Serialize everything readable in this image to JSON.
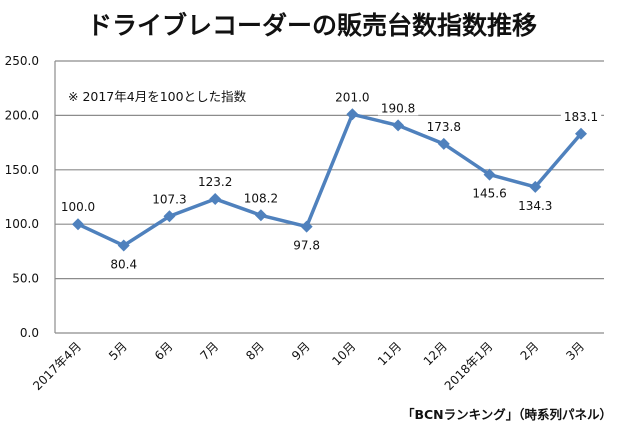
{
  "chart_data": {
    "type": "line",
    "title": "ドライブレコーダーの販売台数指数推移",
    "note": "※ 2017年4月を100とした指数",
    "source": "「BCNランキング」（時系列パネル）",
    "xlabel": "",
    "ylabel": "",
    "ylim": [
      0,
      250
    ],
    "yticks": [
      "0.0",
      "50.0",
      "100.0",
      "150.0",
      "200.0",
      "250.0"
    ],
    "ytick_values": [
      0,
      50,
      100,
      150,
      200,
      250
    ],
    "grid": true,
    "categories": [
      "2017年4月",
      "5月",
      "6月",
      "7月",
      "8月",
      "9月",
      "10月",
      "11月",
      "12月",
      "2018年1月",
      "2月",
      "3月"
    ],
    "series": [
      {
        "name": "販売台数指数",
        "values": [
          100.0,
          80.4,
          107.3,
          123.2,
          108.2,
          97.8,
          201.0,
          190.8,
          173.8,
          145.6,
          134.3,
          183.1
        ],
        "labels": [
          "100.0",
          "80.4",
          "107.3",
          "123.2",
          "108.2",
          "97.8",
          "201.0",
          "190.8",
          "173.8",
          "145.6",
          "134.3",
          "183.1"
        ],
        "label_positions": [
          "above",
          "below",
          "above",
          "above",
          "above",
          "below",
          "above",
          "above",
          "above",
          "below",
          "below",
          "above"
        ],
        "color": "#4F81BD"
      }
    ],
    "colors": {
      "grid": "#8c8c8c",
      "axis": "#8c8c8c",
      "text": "#111111"
    }
  }
}
